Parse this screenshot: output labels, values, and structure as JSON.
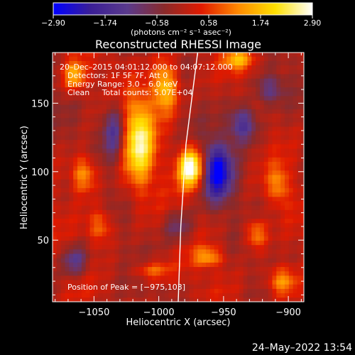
{
  "chart_data": {
    "type": "heatmap",
    "title": "Reconstructed RHESSI Image",
    "xlabel": "Heliocentric X (arcsec)",
    "ylabel": "Heliocentric Y (arcsec)",
    "xlim": [
      -1082,
      -888
    ],
    "ylim": [
      5,
      187
    ],
    "x_ticks": [
      -1050,
      -1000,
      -950,
      -900
    ],
    "x_tick_labels": [
      "−1050",
      "−1000",
      "−950",
      "−900"
    ],
    "y_ticks": [
      50,
      100,
      150
    ],
    "y_tick_labels": [
      "50",
      "100",
      "150"
    ],
    "colorbar": {
      "min": -2.9,
      "max": 2.9,
      "ticks": [
        -2.9,
        -1.74,
        -0.58,
        0.58,
        1.74,
        2.9
      ],
      "tick_labels": [
        "−2.90",
        "−1.74",
        "−0.58",
        "0.58",
        "1.74",
        "2.90"
      ],
      "unit_label": "(photons cm⁻² s⁻¹ asec⁻²)",
      "stops": [
        "#0000ff",
        "#3a1e96",
        "#5a3a8c",
        "#8a2a2a",
        "#e01a00",
        "#ff8a00",
        "#ffe000",
        "#ffffff"
      ]
    },
    "annotations": [
      "20–Dec–2015 04:01:12.000 to 04:07:12.000",
      "Detectors: 1F 5F 7F, Att 0",
      "Energy Range: 3.0 – 6.0 keV",
      "Clean     Total counts: 5.07E+04"
    ],
    "peak_label": "Position of Peak = [−975,103]",
    "peak": {
      "x": -975,
      "y": 103,
      "value": 2.9
    },
    "blobs": [
      {
        "x": -975,
        "y": 103,
        "sx": 7,
        "sy": 10,
        "v": 3.2
      },
      {
        "x": -1015,
        "y": 122,
        "sx": 8,
        "sy": 22,
        "v": 2.4
      },
      {
        "x": -995,
        "y": 162,
        "sx": 7,
        "sy": 14,
        "v": 2.1
      },
      {
        "x": -1058,
        "y": 98,
        "sx": 7,
        "sy": 10,
        "v": 1.6
      },
      {
        "x": -1065,
        "y": 170,
        "sx": 6,
        "sy": 8,
        "v": 1.6
      },
      {
        "x": -938,
        "y": 182,
        "sx": 8,
        "sy": 6,
        "v": 1.5
      },
      {
        "x": -1045,
        "y": 60,
        "sx": 7,
        "sy": 9,
        "v": 1.2
      },
      {
        "x": -962,
        "y": 38,
        "sx": 8,
        "sy": 5,
        "v": 1.3
      },
      {
        "x": -905,
        "y": 20,
        "sx": 8,
        "sy": 8,
        "v": 1.6
      },
      {
        "x": -925,
        "y": 55,
        "sx": 6,
        "sy": 8,
        "v": 1.4
      },
      {
        "x": -1005,
        "y": 28,
        "sx": 10,
        "sy": 5,
        "v": 1.1
      },
      {
        "x": -908,
        "y": 90,
        "sx": 6,
        "sy": 10,
        "v": 1.1
      },
      {
        "x": -955,
        "y": 100,
        "sx": 8,
        "sy": 14,
        "v": -2.8
      },
      {
        "x": -935,
        "y": 135,
        "sx": 8,
        "sy": 10,
        "v": -1.8
      },
      {
        "x": -1035,
        "y": 130,
        "sx": 6,
        "sy": 14,
        "v": -1.5
      },
      {
        "x": -1065,
        "y": 35,
        "sx": 7,
        "sy": 8,
        "v": -1.4
      },
      {
        "x": -915,
        "y": 160,
        "sx": 8,
        "sy": 8,
        "v": -1.3
      },
      {
        "x": -985,
        "y": 60,
        "sx": 8,
        "sy": 8,
        "v": -1.0
      }
    ],
    "limb_curve": [
      [
        -970,
        187
      ],
      [
        -979,
        120
      ],
      [
        -983,
        60
      ],
      [
        -985,
        5
      ]
    ]
  },
  "timestamp": "24–May–2022 13:54",
  "colors": {
    "background": "#000000",
    "axes": "#ffffff",
    "limb": "#ffffff"
  }
}
